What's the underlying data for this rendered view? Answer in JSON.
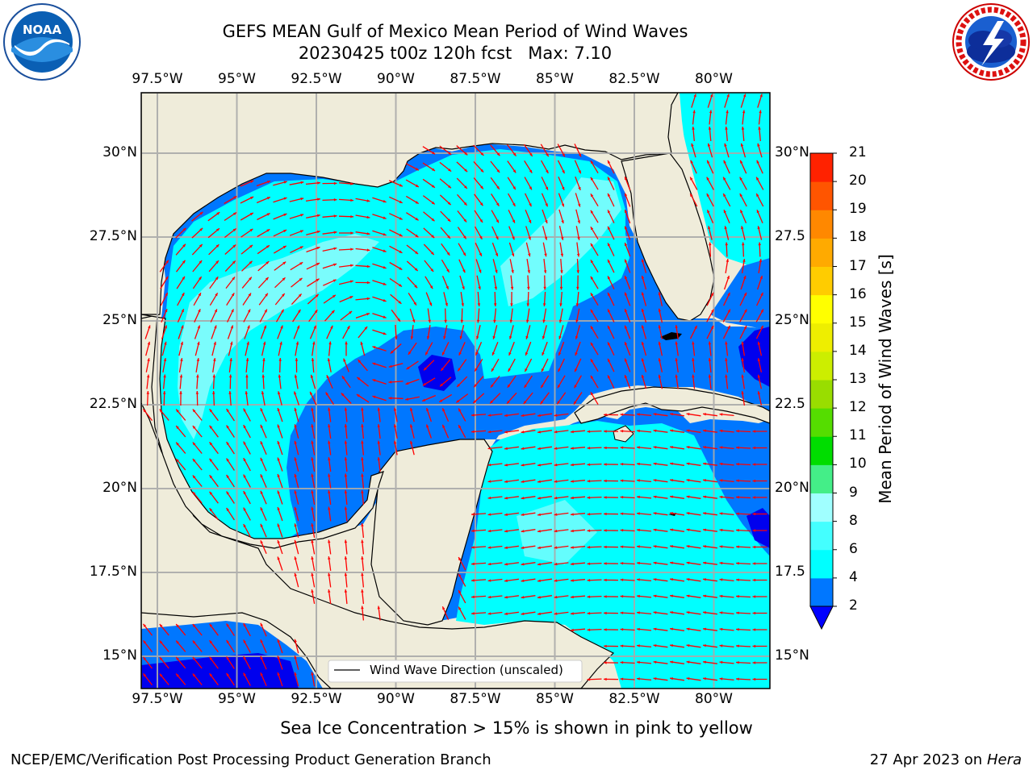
{
  "header": {
    "title_line1": "GEFS MEAN Gulf of Mexico Mean Period of Wind Waves",
    "title_line2": "20230425 t00z 120h fcst   Max: 7.10"
  },
  "logos": {
    "left": {
      "icon": "noaa-logo",
      "text": "NOAA"
    },
    "right": {
      "icon": "national-weather-service-logo"
    }
  },
  "axes": {
    "longitude_labels": [
      "97.5°W",
      "95°W",
      "92.5°W",
      "90°W",
      "87.5°W",
      "85°W",
      "82.5°W",
      "80°W"
    ],
    "latitude_labels": [
      "30°N",
      "27.5°N",
      "25°N",
      "22.5°N",
      "20°N",
      "17.5°N",
      "15°N"
    ],
    "latitude_labels_right": [
      "30°N",
      "27.5",
      "25°N",
      "22.5",
      "20°N",
      "17.5",
      "15°N"
    ]
  },
  "legend": {
    "label": "Wind Wave Direction (unscaled)"
  },
  "colorbar": {
    "label": "Mean Period of Wind Waves [s]",
    "ticks": [
      "2",
      "4",
      "6",
      "8",
      "9",
      "10",
      "11",
      "12",
      "13",
      "14",
      "15",
      "16",
      "17",
      "18",
      "19",
      "20",
      "21"
    ],
    "colors": [
      "#0000ff",
      "#0077ff",
      "#00ffff",
      "#44ffff",
      "#a0ffff",
      "#44ee88",
      "#00dd00",
      "#55dd00",
      "#99dd00",
      "#ccee00",
      "#eeee00",
      "#ffff00",
      "#ffcc00",
      "#ffaa00",
      "#ff8800",
      "#ff5500",
      "#ff2200",
      "#ff0000"
    ]
  },
  "field_colors": {
    "land": "#efecda",
    "level_2_4": "#0077ff",
    "level_4_6": "#00ffff",
    "level_6_8": "#8ffcfc",
    "below_2": "#0000ee",
    "arrows": "#ff0000"
  },
  "note": "Sea Ice Concentration > 15% is shown in pink to yellow",
  "footer": {
    "left": "NCEP/EMC/Verification Post Processing Product Generation Branch",
    "right_date": "27 Apr 2023 on ",
    "right_host": "Hera"
  }
}
